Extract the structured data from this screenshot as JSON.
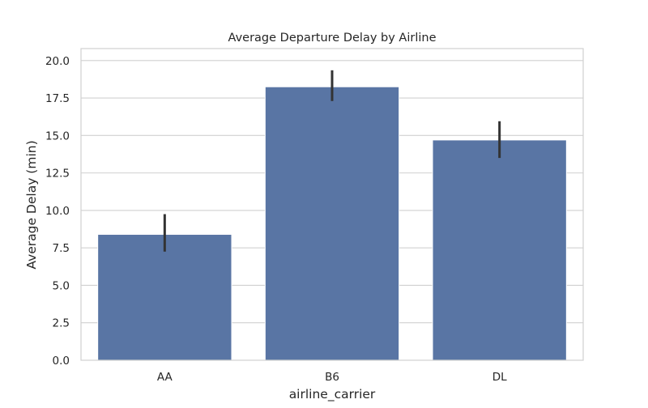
{
  "chart_data": {
    "type": "bar",
    "title": "Average Departure Delay by Airline",
    "xlabel": "airline_carrier",
    "ylabel": "Average Delay (min)",
    "categories": [
      "AA",
      "B6",
      "DL"
    ],
    "values": [
      8.4,
      18.25,
      14.7
    ],
    "error_bars": [
      {
        "low": 7.25,
        "high": 9.75
      },
      {
        "low": 17.3,
        "high": 19.35
      },
      {
        "low": 13.5,
        "high": 15.95
      }
    ],
    "ylim": [
      0,
      20.8
    ],
    "yticks": [
      0.0,
      2.5,
      5.0,
      7.5,
      10.0,
      12.5,
      15.0,
      17.5,
      20.0
    ],
    "ytick_labels": [
      "0.0",
      "2.5",
      "5.0",
      "7.5",
      "10.0",
      "12.5",
      "15.0",
      "17.5",
      "20.0"
    ],
    "grid": true,
    "colors": {
      "bar": "#5975a4",
      "bar_edge": "#ffffff",
      "error": "#333333",
      "grid": "#d0d0d0",
      "frame": "#d0d0d0",
      "text": "#262626"
    }
  }
}
